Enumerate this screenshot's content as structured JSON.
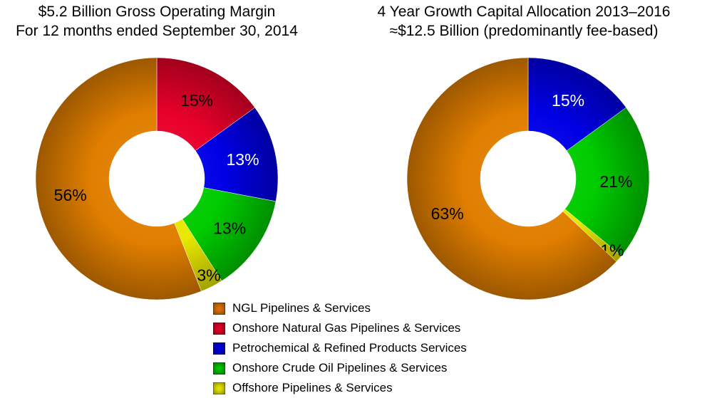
{
  "chart_data": [
    {
      "type": "pie",
      "variant": "donut",
      "title": "$5.2 Billion Gross Operating Margin",
      "subtitle": "For 12 months ended September 30, 2014",
      "categories": [
        "Onshore Natural Gas Pipelines & Services",
        "Petrochemical & Refined Products Services",
        "Onshore Crude Oil Pipelines & Services",
        "Offshore Pipelines & Services",
        "NGL Pipelines & Services"
      ],
      "values": [
        15,
        13,
        13,
        3,
        56
      ],
      "labels": [
        "15%",
        "13%",
        "13%",
        "3%",
        "56%"
      ],
      "label_colors": [
        "#000000",
        "#ffffff",
        "#000000",
        "#000000",
        "#000000"
      ],
      "colors": [
        "#e8002a",
        "#0000e6",
        "#00cc00",
        "#e8e800",
        "#e07e00"
      ]
    },
    {
      "type": "pie",
      "variant": "donut",
      "title": "4 Year Growth Capital Allocation 2013–2016",
      "subtitle": "≈$12.5 Billion (predominantly fee-based)",
      "categories": [
        "Petrochemical & Refined Products Services",
        "Onshore Crude Oil Pipelines & Services",
        "Offshore Pipelines & Services",
        "NGL Pipelines & Services"
      ],
      "values": [
        15,
        21,
        1,
        63
      ],
      "labels": [
        "15%",
        "21%",
        "1%",
        "63%"
      ],
      "label_colors": [
        "#ffffff",
        "#000000",
        "#000000",
        "#000000"
      ],
      "colors": [
        "#0000e6",
        "#00cc00",
        "#e8e800",
        "#e07e00"
      ]
    }
  ],
  "legend": {
    "placement": "bottom-center",
    "items": [
      {
        "label": "NGL Pipelines & Services",
        "color": "#d9700a"
      },
      {
        "label": "Onshore Natural Gas Pipelines & Services",
        "color": "#e0002a"
      },
      {
        "label": "Petrochemical & Refined Products Services",
        "color": "#0000d8"
      },
      {
        "label": "Onshore Crude Oil Pipelines & Services",
        "color": "#00c000"
      },
      {
        "label": "Offshore Pipelines & Services",
        "color": "#e0e000"
      }
    ]
  }
}
